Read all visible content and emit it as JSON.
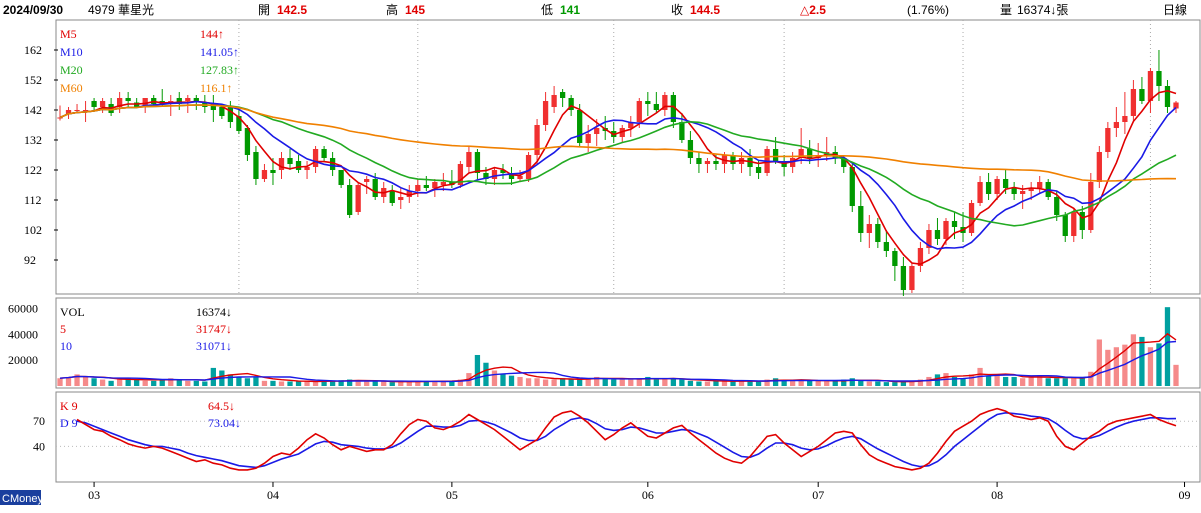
{
  "header": {
    "date": "2024/09/30",
    "stock": "4979 華星光",
    "open_label": "開",
    "open_value": "142.5",
    "high_label": "高",
    "high_value": "145",
    "low_label": "低",
    "low_value": "141",
    "close_label": "收",
    "close_value": "144.5",
    "change": "△2.5",
    "change_pct": "(1.76%)",
    "volume_label": "量",
    "volume_value": "16374↓張",
    "period": "日線"
  },
  "price_legend": [
    {
      "name": "M5",
      "value": "144↑",
      "color": "#e00000"
    },
    {
      "name": "M10",
      "value": "141.05↑",
      "color": "#1a1ae6"
    },
    {
      "name": "M20",
      "value": "127.83↑",
      "color": "#22aa22"
    },
    {
      "name": "M60",
      "value": "116.1↑",
      "color": "#f08000"
    }
  ],
  "volume_legend": [
    {
      "name": "VOL",
      "value": "16374↓",
      "color": "#000000"
    },
    {
      "name": "5",
      "value": "31747↓",
      "color": "#e00000"
    },
    {
      "name": "10",
      "value": "31071↓",
      "color": "#1a1ae6"
    }
  ],
  "kd_legend": [
    {
      "name": "K 9",
      "value": "64.5↓",
      "color": "#e00000"
    },
    {
      "name": "D 9",
      "value": "73.04↓",
      "color": "#1a1ae6"
    }
  ],
  "colors": {
    "up": "#f03030",
    "down": "#009900",
    "vol_up": "#f58a8a",
    "vol_down": "#00a0a0"
  },
  "brand": "CMoney",
  "chart_data": [
    {
      "type": "candlestick",
      "panel": "price",
      "ylim": [
        82,
        170
      ],
      "yticks": [
        92,
        102,
        112,
        122,
        132,
        142,
        152,
        162
      ],
      "x_labels": [
        "03",
        "04",
        "05",
        "06",
        "07",
        "08",
        "09"
      ],
      "x_label_index": [
        4,
        25,
        46,
        69,
        89,
        110,
        132
      ],
      "bars": [
        [
          139.5,
          143.5,
          138.5,
          139.5
        ],
        [
          140.5,
          143,
          139,
          142
        ],
        [
          142,
          144,
          141,
          142
        ],
        [
          142,
          145,
          138,
          142
        ],
        [
          145,
          146,
          142,
          143
        ],
        [
          143,
          146,
          141,
          145
        ],
        [
          144,
          146,
          140,
          141
        ],
        [
          143,
          148,
          141,
          146
        ],
        [
          146,
          148,
          143,
          145
        ],
        [
          144.5,
          146,
          143,
          143
        ],
        [
          143,
          146,
          141,
          146
        ],
        [
          146,
          147,
          143,
          144
        ],
        [
          145,
          149,
          143,
          144
        ],
        [
          144,
          147,
          140,
          145
        ],
        [
          146,
          148,
          142,
          144
        ],
        [
          145,
          147,
          141,
          146
        ],
        [
          146,
          147,
          142,
          145
        ],
        [
          144.5,
          147,
          141,
          143
        ],
        [
          144,
          147,
          138,
          142
        ],
        [
          143,
          144,
          139,
          140
        ],
        [
          143,
          145,
          136,
          138
        ],
        [
          140,
          142,
          134,
          135
        ],
        [
          136,
          137,
          125,
          127
        ],
        [
          128,
          130,
          117,
          119
        ],
        [
          119,
          124,
          118,
          122
        ],
        [
          122,
          126,
          117,
          121
        ],
        [
          122,
          128,
          119,
          126
        ],
        [
          126,
          129,
          122,
          124
        ],
        [
          125,
          127,
          121,
          122
        ],
        [
          122,
          125,
          119,
          123
        ],
        [
          123,
          130,
          121,
          129
        ],
        [
          129,
          130,
          125,
          126
        ],
        [
          126,
          128,
          120,
          122
        ],
        [
          122,
          122,
          116,
          117
        ],
        [
          117,
          119,
          106,
          107
        ],
        [
          108,
          118,
          107,
          117
        ],
        [
          118,
          120,
          114,
          119
        ],
        [
          119,
          121,
          112,
          113
        ],
        [
          113,
          118,
          111,
          116
        ],
        [
          115,
          117,
          110,
          111
        ],
        [
          112,
          116,
          109,
          113
        ],
        [
          113,
          117,
          111,
          115
        ],
        [
          115,
          119,
          113,
          117
        ],
        [
          117,
          120,
          115,
          116
        ],
        [
          116,
          119,
          113,
          118
        ],
        [
          117,
          121,
          115,
          118
        ],
        [
          118,
          122,
          116,
          117
        ],
        [
          117,
          125,
          116,
          124
        ],
        [
          123,
          130,
          121,
          128
        ],
        [
          128,
          129,
          119,
          121
        ],
        [
          121,
          123,
          117,
          119
        ],
        [
          119,
          123,
          117,
          122
        ],
        [
          122,
          124,
          119,
          121
        ],
        [
          121,
          123,
          117,
          119
        ],
        [
          119,
          122,
          118,
          120
        ],
        [
          119,
          128,
          118,
          127
        ],
        [
          127,
          139,
          124,
          137
        ],
        [
          137,
          148,
          135,
          145
        ],
        [
          143,
          150,
          141,
          147
        ],
        [
          148,
          149,
          143,
          146
        ],
        [
          146,
          147,
          140,
          142
        ],
        [
          142,
          144,
          130,
          131
        ],
        [
          131,
          137,
          128,
          134
        ],
        [
          134,
          139,
          130,
          136
        ],
        [
          136,
          140,
          132,
          135
        ],
        [
          135,
          138,
          131,
          133
        ],
        [
          133,
          137,
          131,
          136
        ],
        [
          136,
          140,
          133,
          138
        ],
        [
          138,
          146,
          136,
          145
        ],
        [
          145,
          148,
          140,
          144
        ],
        [
          144,
          148,
          141,
          142
        ],
        [
          142,
          148,
          140,
          147
        ],
        [
          147,
          148,
          136,
          138
        ],
        [
          138,
          141,
          131,
          132
        ],
        [
          132,
          135,
          124,
          126
        ],
        [
          126,
          128,
          121,
          124
        ],
        [
          124,
          126,
          121,
          125
        ],
        [
          125,
          127,
          122,
          124
        ],
        [
          124,
          128,
          121,
          127
        ],
        [
          127,
          128,
          122,
          124
        ],
        [
          124,
          128,
          121,
          126
        ],
        [
          126,
          129,
          120,
          123
        ],
        [
          123,
          125,
          119,
          121
        ],
        [
          121,
          130,
          120,
          129
        ],
        [
          129,
          133,
          124,
          125
        ],
        [
          125,
          127,
          120,
          123
        ],
        [
          123,
          128,
          121,
          126
        ],
        [
          126,
          136,
          124,
          129
        ],
        [
          129,
          132,
          124,
          126
        ],
        [
          126,
          131,
          123,
          127
        ],
        [
          127,
          133,
          125,
          128
        ],
        [
          128,
          130,
          124,
          126
        ],
        [
          126,
          127,
          121,
          123
        ],
        [
          123,
          124,
          108,
          110
        ],
        [
          110,
          115,
          98,
          101
        ],
        [
          101,
          107,
          96,
          104
        ],
        [
          104,
          106,
          96,
          98
        ],
        [
          98,
          102,
          93,
          95
        ],
        [
          95,
          96,
          85,
          90
        ],
        [
          90,
          93,
          80,
          82
        ],
        [
          82,
          91,
          81,
          90
        ],
        [
          90,
          98,
          88,
          96
        ],
        [
          96,
          104,
          94,
          102
        ],
        [
          102,
          106,
          97,
          99
        ],
        [
          99,
          106,
          97,
          105
        ],
        [
          105,
          108,
          99,
          103
        ],
        [
          103,
          108,
          98,
          101
        ],
        [
          101,
          112,
          100,
          111
        ],
        [
          111,
          120,
          110,
          118
        ],
        [
          118,
          121,
          112,
          114
        ],
        [
          114,
          120,
          112,
          119
        ],
        [
          119,
          122,
          114,
          116
        ],
        [
          116,
          118,
          112,
          114
        ],
        [
          114,
          117,
          109,
          115
        ],
        [
          115,
          118,
          112,
          116
        ],
        [
          116,
          120,
          114,
          118
        ],
        [
          118,
          119,
          112,
          113
        ],
        [
          113,
          115,
          105,
          107
        ],
        [
          107,
          108,
          98,
          100
        ],
        [
          100,
          109,
          98,
          108
        ],
        [
          108,
          110,
          99,
          102
        ],
        [
          102,
          121,
          101,
          118
        ],
        [
          118,
          130,
          116,
          128
        ],
        [
          128,
          138,
          126,
          136
        ],
        [
          136,
          143,
          133,
          138
        ],
        [
          138,
          148,
          134,
          140
        ],
        [
          140,
          152,
          138,
          149
        ],
        [
          149,
          153,
          144,
          145
        ],
        [
          145,
          156,
          141,
          155
        ],
        [
          155,
          162,
          145,
          150
        ],
        [
          150,
          152,
          141,
          143
        ],
        [
          142.5,
          145,
          141,
          144.5
        ]
      ],
      "series": [
        {
          "name": "M5",
          "last": 144
        },
        {
          "name": "M10",
          "last": 141.05
        },
        {
          "name": "M20",
          "last": 127.83
        },
        {
          "name": "M60",
          "last": 116.1
        }
      ]
    },
    {
      "type": "bar",
      "panel": "volume",
      "ylim": [
        0,
        65000
      ],
      "yticks": [
        20000,
        40000,
        60000
      ],
      "values": [
        6000,
        7000,
        9000,
        7000,
        6000,
        5000,
        4000,
        5000,
        6000,
        5000,
        4000,
        4000,
        5000,
        6000,
        5000,
        4000,
        4000,
        3500,
        14000,
        12000,
        9000,
        7000,
        6000,
        7000,
        4000,
        4000,
        3500,
        3500,
        4000,
        3500,
        3000,
        4000,
        4000,
        4500,
        5000,
        4000,
        3500,
        3500,
        3500,
        3000,
        3000,
        3500,
        3500,
        4000,
        4000,
        3500,
        4000,
        5000,
        10000,
        24000,
        18000,
        12000,
        9000,
        8000,
        7000,
        6000,
        6000,
        5000,
        5000,
        6000,
        5000,
        5000,
        6000,
        7000,
        6000,
        5000,
        5000,
        5000,
        6000,
        7000,
        5000,
        5000,
        6000,
        5000,
        4000,
        3500,
        3500,
        4000,
        4000,
        3500,
        3500,
        4000,
        3500,
        5000,
        6000,
        4000,
        4000,
        5000,
        4000,
        4000,
        3500,
        3500,
        5000,
        6000,
        4000,
        3500,
        3500,
        3000,
        3000,
        3500,
        4000,
        5000,
        7000,
        9000,
        10000,
        7000,
        6000,
        9000,
        14000,
        8000,
        8000,
        7000,
        7000,
        6000,
        7000,
        8000,
        6000,
        6000,
        6000,
        6000,
        7000,
        11000,
        36000,
        28000,
        30000,
        32000,
        40000,
        38000,
        30000,
        33000,
        61000,
        16374
      ],
      "series": [
        {
          "name": "VOL",
          "last": 16374
        },
        {
          "name": "5",
          "last": 31747
        },
        {
          "name": "10",
          "last": 31071
        }
      ]
    },
    {
      "type": "line",
      "panel": "kd",
      "ylim": [
        0,
        100
      ],
      "yticks": [
        40,
        70
      ],
      "series": [
        {
          "name": "K 9",
          "last": 64.5,
          "values": [
            72,
            66,
            60,
            58,
            52,
            48,
            43,
            40,
            38,
            40,
            38,
            34,
            30,
            26,
            22,
            24,
            20,
            18,
            14,
            12,
            12,
            14,
            20,
            28,
            32,
            30,
            38,
            48,
            55,
            50,
            42,
            36,
            40,
            37,
            34,
            36,
            36,
            42,
            55,
            66,
            72,
            70,
            62,
            60,
            64,
            70,
            78,
            72,
            66,
            60,
            52,
            44,
            36,
            42,
            48,
            62,
            75,
            80,
            82,
            76,
            68,
            58,
            48,
            54,
            62,
            68,
            60,
            52,
            50,
            56,
            62,
            65,
            56,
            48,
            40,
            32,
            26,
            22,
            20,
            28,
            40,
            52,
            54,
            44,
            36,
            28,
            34,
            40,
            48,
            56,
            58,
            56,
            42,
            30,
            24,
            20,
            16,
            14,
            12,
            14,
            20,
            32,
            46,
            58,
            64,
            70,
            78,
            82,
            85,
            82,
            76,
            74,
            72,
            74,
            70,
            52,
            40,
            36,
            44,
            52,
            58,
            66,
            70,
            72,
            74,
            76,
            78,
            72,
            68,
            64.5
          ]
        },
        {
          "name": "D 9",
          "last": 73.04,
          "values": [
            70,
            68,
            64,
            60,
            56,
            52,
            48,
            45,
            42,
            40,
            40,
            38,
            36,
            32,
            29,
            27,
            25,
            23,
            20,
            17,
            16,
            15,
            17,
            21,
            25,
            28,
            31,
            37,
            43,
            46,
            45,
            42,
            41,
            40,
            38,
            37,
            37,
            39,
            44,
            51,
            58,
            64,
            64,
            63,
            63,
            65,
            70,
            71,
            69,
            66,
            61,
            56,
            50,
            47,
            47,
            52,
            60,
            66,
            72,
            74,
            72,
            67,
            61,
            59,
            60,
            63,
            62,
            59,
            56,
            56,
            58,
            60,
            59,
            55,
            51,
            45,
            39,
            33,
            28,
            27,
            31,
            38,
            44,
            44,
            42,
            38,
            36,
            37,
            41,
            46,
            50,
            52,
            49,
            43,
            37,
            32,
            27,
            22,
            18,
            16,
            17,
            22,
            30,
            40,
            48,
            56,
            64,
            72,
            78,
            80,
            79,
            78,
            76,
            75,
            73,
            67,
            59,
            52,
            49,
            50,
            53,
            58,
            63,
            67,
            70,
            72,
            74,
            74,
            73,
            73.04
          ]
        }
      ]
    }
  ]
}
